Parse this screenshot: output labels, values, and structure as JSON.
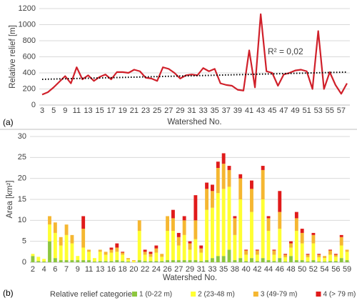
{
  "chart_data": [
    {
      "type": "line",
      "panel": "(a)",
      "y_label": "Relative relief [m]",
      "x_label": "Watershed No.",
      "categories": [
        "3",
        null,
        "5",
        null,
        "9",
        null,
        "11",
        null,
        "13",
        null,
        "15",
        null,
        "17",
        null,
        "19",
        null,
        "21",
        null,
        "23",
        null,
        "25",
        null,
        "27",
        null,
        "29",
        null,
        "31",
        null,
        "33",
        null,
        "35",
        null,
        "37",
        null,
        "39",
        null,
        "41",
        null,
        "43",
        null,
        "45",
        null,
        "47",
        null,
        "49",
        null,
        "51",
        null,
        "53",
        null,
        "55",
        null,
        "57",
        null
      ],
      "values": [
        130,
        160,
        220,
        290,
        360,
        270,
        470,
        320,
        370,
        300,
        350,
        380,
        320,
        410,
        410,
        400,
        440,
        420,
        340,
        330,
        300,
        470,
        450,
        400,
        330,
        370,
        380,
        370,
        460,
        420,
        450,
        270,
        250,
        240,
        190,
        180,
        680,
        220,
        1130,
        420,
        400,
        240,
        380,
        400,
        430,
        440,
        420,
        200,
        920,
        200,
        410,
        250,
        140,
        270
      ],
      "color": "#d0202a",
      "trendline": {
        "values": [
          320,
          410
        ],
        "label": "R² = 0,02"
      },
      "ylim": [
        0,
        1200
      ],
      "yticks": [
        0,
        200,
        400,
        600,
        800,
        1000,
        1200
      ],
      "grid": true
    },
    {
      "type": "bar",
      "stacked": true,
      "panel": "(b)",
      "y_label": "Area [km²]",
      "x_label": "Watershed No.",
      "legend_title": "Relative relief categories",
      "categories": [
        "2",
        null,
        "4",
        null,
        "6",
        null,
        "7",
        null,
        "9",
        null,
        "11",
        null,
        "13",
        null,
        "16",
        null,
        "18",
        null,
        "20",
        null,
        "22",
        null,
        "24",
        null,
        "26",
        null,
        "27",
        null,
        "29",
        null,
        "31",
        null,
        "33",
        null,
        "35",
        null,
        "38",
        null,
        "40",
        null,
        "42",
        null,
        "44",
        null,
        "46",
        null,
        "48",
        null,
        "50",
        null,
        "52",
        null,
        "54",
        null,
        "56",
        null,
        "59"
      ],
      "series": [
        {
          "name": "1 (0-22 m)",
          "color": "#8dc63f",
          "values": [
            1.5,
            0.3,
            0.2,
            5,
            1,
            0.5,
            0.5,
            0.5,
            0.5,
            0.5,
            0.5,
            0.2,
            0.3,
            0.3,
            0.3,
            0.5,
            0.3,
            0.2,
            0,
            0.5,
            0.3,
            0.3,
            0.3,
            0.3,
            0.5,
            0.5,
            0.5,
            0.5,
            0.5,
            0.5,
            0.3,
            0.5,
            1,
            1.5,
            1.5,
            3,
            0.5,
            1,
            0.3,
            1,
            0.3,
            1,
            0.5,
            0.3,
            1,
            0.2,
            1.5,
            0.5,
            0.5,
            0.2,
            0.5,
            0.2,
            0.2,
            0.3,
            0.3,
            1,
            0.5
          ]
        },
        {
          "name": "2 (23-48 m)",
          "color": "#ffff33",
          "values": [
            0.5,
            1,
            0.6,
            4,
            6,
            3.5,
            6,
            4,
            1,
            3,
            2,
            0.8,
            2.2,
            1.5,
            2,
            2,
            1.5,
            0.5,
            0.3,
            7,
            1.5,
            1,
            2,
            1,
            7,
            7,
            3.5,
            6,
            2.5,
            5,
            2,
            12,
            12,
            15,
            16,
            15,
            6,
            14,
            1.5,
            11,
            1.5,
            14,
            7,
            1.5,
            7,
            1,
            2,
            7,
            4,
            1,
            4,
            1,
            0.8,
            1.5,
            1,
            3,
            2
          ]
        },
        {
          "name": "3 (49-79 m)",
          "color": "#f5b731",
          "values": [
            0,
            0,
            0,
            2,
            2.5,
            2,
            2.5,
            2,
            0,
            4.5,
            0.5,
            0,
            0.5,
            0.7,
            0.7,
            1,
            0.5,
            0.3,
            0.2,
            2.5,
            0.7,
            0.7,
            1,
            0.7,
            3.5,
            3,
            2,
            3.5,
            1.5,
            4.5,
            1,
            5,
            4,
            6,
            6,
            4,
            4,
            5,
            1,
            5.5,
            1,
            7,
            3,
            1,
            4,
            0.6,
            1,
            3,
            2.5,
            0.6,
            2,
            0.6,
            0.5,
            1,
            0.5,
            2,
            0.5
          ]
        },
        {
          "name": "4 (> 79 m)",
          "color": "#e01b1b",
          "values": [
            0,
            0,
            0,
            0,
            0,
            0,
            0,
            0,
            0,
            3,
            0,
            0,
            0,
            0,
            0.5,
            1,
            0.2,
            0,
            0,
            0,
            0.5,
            0.5,
            0.7,
            0,
            0,
            2,
            1,
            1,
            0.5,
            6,
            0.7,
            1.5,
            1.5,
            1.5,
            2.5,
            1,
            0.5,
            1,
            0.2,
            2,
            0.2,
            1,
            0.5,
            0.2,
            5,
            0.2,
            0.5,
            1.5,
            1,
            0.2,
            0.5,
            0.2,
            0,
            0.2,
            0.2,
            0.5,
            0
          ]
        }
      ],
      "ylim": [
        0,
        30
      ],
      "yticks": [
        0,
        5,
        10,
        15,
        20,
        25,
        30
      ],
      "grid": true
    }
  ]
}
